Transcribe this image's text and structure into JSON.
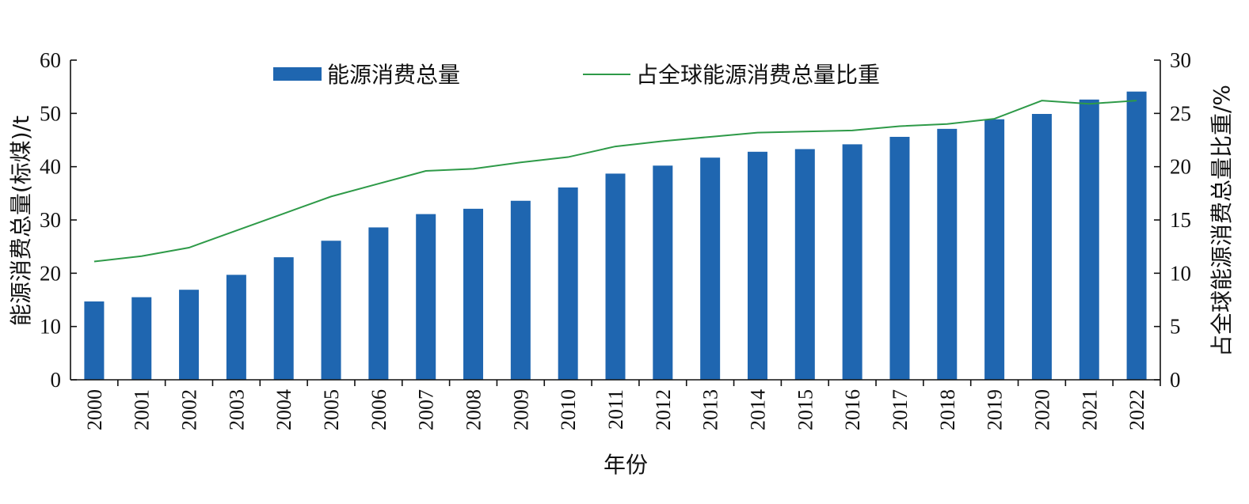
{
  "chart_data": {
    "type": "bar+line",
    "categories": [
      "2000",
      "2001",
      "2002",
      "2003",
      "2004",
      "2005",
      "2006",
      "2007",
      "2008",
      "2009",
      "2010",
      "2011",
      "2012",
      "2013",
      "2014",
      "2015",
      "2016",
      "2017",
      "2018",
      "2019",
      "2020",
      "2021",
      "2022"
    ],
    "series": [
      {
        "name": "能源消费总量",
        "type": "bar",
        "axis": "left",
        "color": "#1f66b0",
        "values": [
          14.7,
          15.5,
          16.9,
          19.7,
          23.0,
          26.1,
          28.6,
          31.1,
          32.1,
          33.6,
          36.1,
          38.7,
          40.2,
          41.7,
          42.8,
          43.3,
          44.2,
          45.6,
          47.1,
          48.9,
          49.9,
          52.6,
          54.1
        ]
      },
      {
        "name": "占全球能源消费总量比重",
        "type": "line",
        "axis": "right",
        "color": "#2e9a48",
        "values": [
          11.1,
          11.6,
          12.4,
          14.0,
          15.6,
          17.2,
          18.4,
          19.6,
          19.8,
          20.4,
          20.9,
          21.9,
          22.4,
          22.8,
          23.2,
          23.3,
          23.4,
          23.8,
          24.0,
          24.5,
          26.2,
          25.9,
          26.2
        ]
      }
    ],
    "xlabel": "年份",
    "ylabel": "能源消费总量(标煤)/t",
    "y2label": "占全球能源消费总量比重/%",
    "ylim": [
      0,
      60
    ],
    "y2lim": [
      0,
      30
    ],
    "yticks": [
      0,
      10,
      20,
      30,
      40,
      50,
      60
    ],
    "y2ticks": [
      0,
      5,
      10,
      15,
      20,
      25,
      30
    ],
    "grid": false,
    "legend_position": "top-center"
  }
}
